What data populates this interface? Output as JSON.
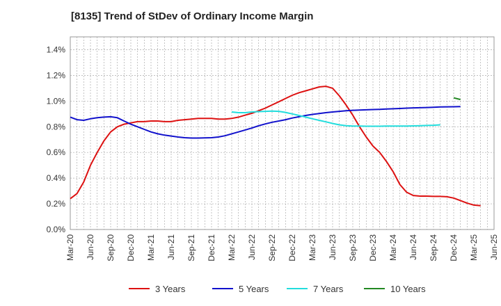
{
  "chart_data": {
    "type": "line",
    "title": "[8135]  Trend of StDev of Ordinary Income Margin",
    "xlabel": "",
    "ylabel": "",
    "ylim": [
      0,
      1.5
    ],
    "yticks": [
      0,
      0.2,
      0.4,
      0.6,
      0.8,
      1.0,
      1.2,
      1.4
    ],
    "ytick_labels": [
      "0.0%",
      "0.2%",
      "0.4%",
      "0.6%",
      "0.8%",
      "1.0%",
      "1.2%",
      "1.4%"
    ],
    "xtick_labels": [
      "Mar-20",
      "Jun-20",
      "Sep-20",
      "Dec-20",
      "Mar-21",
      "Jun-21",
      "Sep-21",
      "Dec-21",
      "Mar-22",
      "Jun-22",
      "Sep-22",
      "Dec-22",
      "Mar-23",
      "Jun-23",
      "Sep-23",
      "Dec-23",
      "Mar-24",
      "Jun-24",
      "Sep-24",
      "Dec-24",
      "Mar-25",
      "Jun-25"
    ],
    "grid": true,
    "legend_position": "bottom",
    "series": [
      {
        "name": "3 Years",
        "color": "#dd1111",
        "start": "Mar-20",
        "values": [
          0.24,
          0.28,
          0.37,
          0.5,
          0.6,
          0.69,
          0.76,
          0.8,
          0.82,
          0.83,
          0.84,
          0.84,
          0.845,
          0.845,
          0.84,
          0.84,
          0.85,
          0.855,
          0.86,
          0.865,
          0.865,
          0.865,
          0.86,
          0.86,
          0.865,
          0.875,
          0.89,
          0.905,
          0.925,
          0.945,
          0.97,
          0.995,
          1.02,
          1.045,
          1.065,
          1.08,
          1.095,
          1.11,
          1.115,
          1.1,
          1.04,
          0.97,
          0.89,
          0.8,
          0.72,
          0.65,
          0.6,
          0.53,
          0.45,
          0.35,
          0.29,
          0.265,
          0.26,
          0.26,
          0.258,
          0.258,
          0.255,
          0.245,
          0.225,
          0.205,
          0.19,
          0.185
        ]
      },
      {
        "name": "5 Years",
        "color": "#1111cc",
        "start": "Mar-20",
        "values": [
          0.875,
          0.855,
          0.85,
          0.862,
          0.87,
          0.875,
          0.878,
          0.87,
          0.845,
          0.82,
          0.8,
          0.78,
          0.76,
          0.745,
          0.735,
          0.728,
          0.72,
          0.715,
          0.712,
          0.712,
          0.713,
          0.715,
          0.72,
          0.73,
          0.745,
          0.76,
          0.775,
          0.79,
          0.808,
          0.822,
          0.835,
          0.845,
          0.855,
          0.868,
          0.878,
          0.888,
          0.896,
          0.903,
          0.91,
          0.915,
          0.92,
          0.925,
          0.928,
          0.93,
          0.932,
          0.934,
          0.936,
          0.938,
          0.94,
          0.942,
          0.945,
          0.947,
          0.948,
          0.95,
          0.952,
          0.954,
          0.955,
          0.956,
          0.957
        ]
      },
      {
        "name": "7 Years",
        "color": "#22dddd",
        "start": "Mar-22",
        "values": [
          0.915,
          0.91,
          0.91,
          0.915,
          0.918,
          0.92,
          0.922,
          0.92,
          0.912,
          0.9,
          0.888,
          0.875,
          0.862,
          0.85,
          0.838,
          0.826,
          0.815,
          0.808,
          0.805,
          0.805,
          0.804,
          0.804,
          0.804,
          0.805,
          0.805,
          0.806,
          0.806,
          0.807,
          0.808,
          0.81,
          0.812,
          0.815
        ]
      },
      {
        "name": "10 Years",
        "color": "#228822",
        "start": "Dec-24",
        "values": [
          1.025,
          1.012
        ]
      }
    ]
  }
}
